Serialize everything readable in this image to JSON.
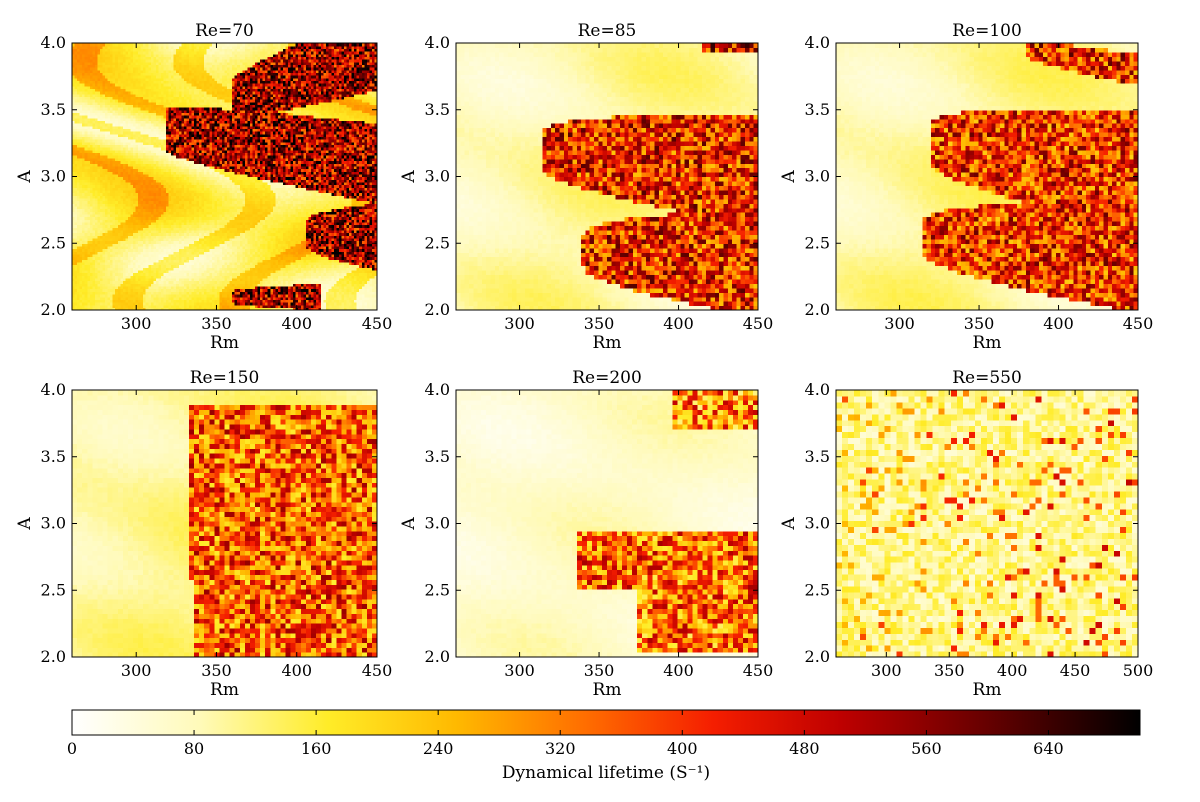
{
  "chart_data": {
    "type": "heatmap",
    "colormap": "afmhot_r",
    "panels": [
      {
        "title": "Re=70",
        "xlabel": "Rm",
        "ylabel": "A",
        "xlim": [
          260,
          450
        ],
        "ylim": [
          2.0,
          4.0
        ],
        "xticks": [
          "300",
          "350",
          "400",
          "450"
        ],
        "yticks": [
          "2.0",
          "2.5",
          "3.0",
          "3.5",
          "4.0"
        ],
        "xtick_values": [
          300,
          350,
          400,
          450
        ],
        "ytick_values": [
          2.0,
          2.5,
          3.0,
          3.5,
          4.0
        ],
        "grid": [
          120,
          100
        ],
        "regions": [
          {
            "type": "band",
            "x0": 360,
            "x1": 450,
            "yc0": 3.6,
            "yc1": 3.95,
            "hw0": 0.12,
            "hw1": 0.3,
            "level": 0.75
          },
          {
            "type": "band",
            "x0": 318,
            "x1": 450,
            "yc0": 3.35,
            "yc1": 3.1,
            "hw0": 0.15,
            "hw1": 0.3,
            "level": 0.75
          },
          {
            "type": "band",
            "x0": 405,
            "x1": 450,
            "yc0": 2.58,
            "yc1": 2.55,
            "hw0": 0.08,
            "hw1": 0.25,
            "level": 0.72
          },
          {
            "type": "band",
            "x0": 360,
            "x1": 415,
            "yc0": 2.1,
            "yc1": 2.1,
            "hw0": 0.04,
            "hw1": 0.1,
            "level": 0.72
          }
        ],
        "background": "swirl",
        "bg_base": 0.18,
        "bg_amp": 0.12
      },
      {
        "title": "Re=85",
        "xlabel": "Rm",
        "ylabel": "A",
        "xlim": [
          260,
          450
        ],
        "ylim": [
          2.0,
          4.0
        ],
        "xticks": [
          "300",
          "350",
          "400",
          "450"
        ],
        "yticks": [
          "2.0",
          "2.5",
          "3.0",
          "3.5",
          "4.0"
        ],
        "xtick_values": [
          300,
          350,
          400,
          450
        ],
        "ytick_values": [
          2.0,
          2.5,
          3.0,
          3.5,
          4.0
        ],
        "grid": [
          70,
          60
        ],
        "regions": [
          {
            "type": "band",
            "x0": 315,
            "x1": 450,
            "yc0": 3.2,
            "yc1": 3.05,
            "hw0": 0.14,
            "hw1": 0.42,
            "level": 0.6
          },
          {
            "type": "band",
            "x0": 340,
            "x1": 450,
            "yc0": 2.45,
            "yc1": 2.35,
            "hw0": 0.12,
            "hw1": 0.4,
            "level": 0.6
          },
          {
            "type": "band",
            "x0": 415,
            "x1": 450,
            "yc0": 3.97,
            "yc1": 3.97,
            "hw0": 0.02,
            "hw1": 0.03,
            "level": 0.7
          }
        ],
        "background": "soft",
        "bg_base": 0.12,
        "bg_amp": 0.07
      },
      {
        "title": "Re=100",
        "xlabel": "Rm",
        "ylabel": "A",
        "xlim": [
          260,
          450
        ],
        "ylim": [
          2.0,
          4.0
        ],
        "xticks": [
          "300",
          "350",
          "400",
          "450"
        ],
        "yticks": [
          "2.0",
          "2.5",
          "3.0",
          "3.5",
          "4.0"
        ],
        "xtick_values": [
          300,
          350,
          400,
          450
        ],
        "ytick_values": [
          2.0,
          2.5,
          3.0,
          3.5,
          4.0
        ],
        "grid": [
          70,
          60
        ],
        "regions": [
          {
            "type": "band",
            "x0": 320,
            "x1": 450,
            "yc0": 3.25,
            "yc1": 3.05,
            "hw0": 0.15,
            "hw1": 0.45,
            "level": 0.55
          },
          {
            "type": "band",
            "x0": 315,
            "x1": 450,
            "yc0": 2.55,
            "yc1": 2.4,
            "hw0": 0.12,
            "hw1": 0.42,
            "level": 0.55
          },
          {
            "type": "band",
            "x0": 380,
            "x1": 450,
            "yc0": 3.95,
            "yc1": 3.8,
            "hw0": 0.05,
            "hw1": 0.12,
            "level": 0.6
          }
        ],
        "background": "soft",
        "bg_base": 0.13,
        "bg_amp": 0.07
      },
      {
        "title": "Re=150",
        "xlabel": "Rm",
        "ylabel": "A",
        "xlim": [
          260,
          450
        ],
        "ylim": [
          2.0,
          4.0
        ],
        "xticks": [
          "300",
          "350",
          "400",
          "450"
        ],
        "yticks": [
          "2.0",
          "2.5",
          "3.0",
          "3.5",
          "4.0"
        ],
        "xtick_values": [
          300,
          350,
          400,
          450
        ],
        "ytick_values": [
          2.0,
          2.5,
          3.0,
          3.5,
          4.0
        ],
        "grid": [
          60,
          55
        ],
        "regions": [
          {
            "type": "rect",
            "x0": 332,
            "x1": 450,
            "y0": 2.6,
            "y1": 3.88,
            "level": 0.42
          },
          {
            "type": "rect",
            "x0": 335,
            "x1": 450,
            "y0": 2.0,
            "y1": 2.6,
            "level": 0.42
          }
        ],
        "background": "soft",
        "bg_base": 0.14,
        "bg_amp": 0.06
      },
      {
        "title": "Re=200",
        "xlabel": "Rm",
        "ylabel": "A",
        "xlim": [
          260,
          450
        ],
        "ylim": [
          2.0,
          4.0
        ],
        "xticks": [
          "300",
          "350",
          "400",
          "450"
        ],
        "yticks": [
          "2.0",
          "2.5",
          "3.0",
          "3.5",
          "4.0"
        ],
        "xtick_values": [
          300,
          350,
          400,
          450
        ],
        "ytick_values": [
          2.0,
          2.5,
          3.0,
          3.5,
          4.0
        ],
        "grid": [
          60,
          55
        ],
        "regions": [
          {
            "type": "rect",
            "x0": 335,
            "x1": 450,
            "y0": 2.5,
            "y1": 2.95,
            "level": 0.38
          },
          {
            "type": "rect",
            "x0": 375,
            "x1": 450,
            "y0": 2.05,
            "y1": 2.5,
            "level": 0.35
          },
          {
            "type": "rect",
            "x0": 395,
            "x1": 450,
            "y0": 3.7,
            "y1": 4.0,
            "level": 0.3
          }
        ],
        "background": "pale",
        "bg_base": 0.08,
        "bg_amp": 0.05
      },
      {
        "title": "Re=550",
        "xlabel": "Rm",
        "ylabel": "A",
        "xlim": [
          260,
          500
        ],
        "ylim": [
          2.0,
          4.0
        ],
        "xticks": [
          "300",
          "350",
          "400",
          "450",
          "500"
        ],
        "yticks": [
          "2.0",
          "2.5",
          "3.0",
          "3.5",
          "4.0"
        ],
        "xtick_values": [
          300,
          350,
          400,
          450,
          500
        ],
        "ytick_values": [
          2.0,
          2.5,
          3.0,
          3.5,
          4.0
        ],
        "grid": [
          50,
          45
        ],
        "regions": [],
        "background": "speckle",
        "bg_base": 0.17,
        "bg_amp": 0.1
      }
    ],
    "colorbar": {
      "min": 0,
      "max": 700,
      "ticks": [
        "0",
        "80",
        "160",
        "240",
        "320",
        "400",
        "480",
        "560",
        "640"
      ],
      "tick_values": [
        0,
        80,
        160,
        240,
        320,
        400,
        480,
        560,
        640
      ],
      "label": "Dynamical lifetime (S⁻¹)",
      "orientation": "horizontal"
    }
  }
}
